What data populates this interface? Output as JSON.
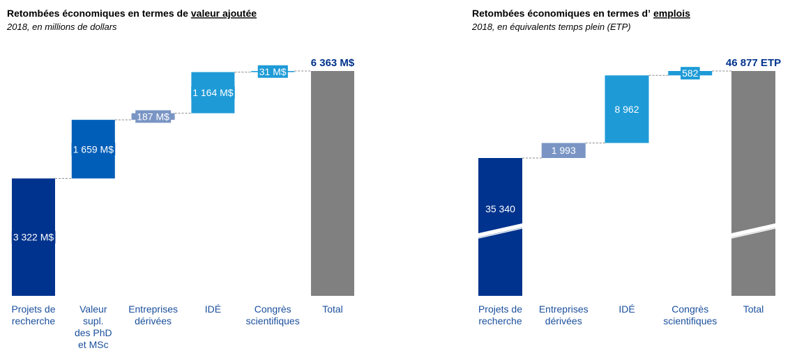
{
  "chart_data": [
    {
      "type": "waterfall",
      "title": [
        "Retombées économiques en termes de",
        "valeur ajoutée"
      ],
      "subtitle": "2018, en millions de dollars",
      "categories": [
        "Projets de\nrecherche",
        "Valeur\nsupl.\ndes PhD\net MSc",
        "Entreprises\ndérivées",
        "IDÉ",
        "Congrès\nscientifiques",
        "Total"
      ],
      "values": [
        3322,
        1659,
        187,
        1164,
        31,
        6363
      ],
      "value_labels": [
        "3 322 M$",
        "1 659 M$",
        "187 M$",
        "1 164 M$",
        "31 M$",
        "6 363 M$"
      ],
      "colors": [
        "#00338d",
        "#005eb8",
        "#7a95c4",
        "#1e9bd7",
        "#1e9bd7",
        "#808080"
      ]
    },
    {
      "type": "waterfall",
      "title": [
        "Retombées économiques en termes d’",
        "emplois"
      ],
      "subtitle": "2018, en équivalents temps plein (ETP)",
      "categories": [
        "Projets de\nrecherche",
        "Entreprises\ndérivées",
        "IDÉ",
        "Congrès\nscientifiques",
        "Total"
      ],
      "values": [
        35340,
        1993,
        8962,
        582,
        46877
      ],
      "value_labels": [
        "35 340",
        "1 993",
        "8 962",
        "582",
        "46 877 ETP"
      ],
      "colors": [
        "#00338d",
        "#7a95c4",
        "#1e9bd7",
        "#1e9bd7",
        "#808080"
      ],
      "axis_break": true
    }
  ]
}
